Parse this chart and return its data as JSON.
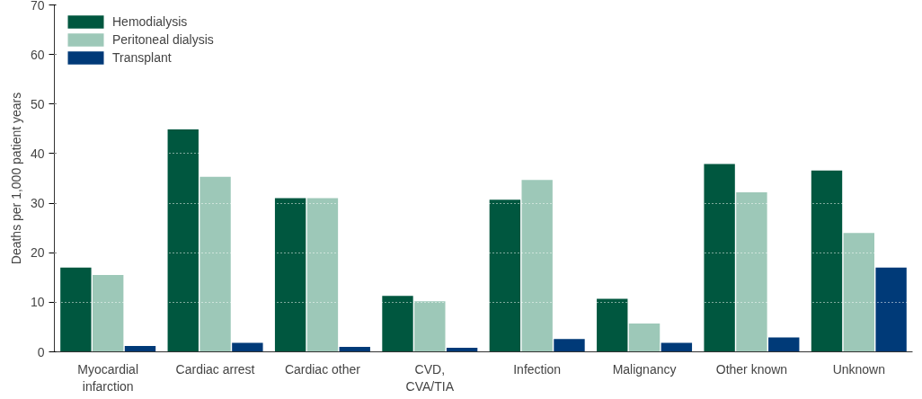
{
  "chart_data": {
    "type": "bar",
    "ylabel": "Deaths per 1,000 patient years",
    "categories": [
      "Myocardial\ninfarction",
      "Cardiac arrest",
      "Cardiac other",
      "CVD,\nCVA/TIA",
      "Infection",
      "Malignancy",
      "Other known",
      "Unknown"
    ],
    "series": [
      {
        "name": "Hemodialysis",
        "color": "#00573f",
        "values": [
          17.0,
          44.9,
          31.0,
          11.3,
          30.7,
          10.7,
          37.9,
          36.6
        ]
      },
      {
        "name": "Peritoneal dialysis",
        "color": "#9dc8b8",
        "values": [
          15.5,
          35.3,
          31.0,
          10.2,
          34.7,
          5.7,
          32.2,
          24.0
        ]
      },
      {
        "name": "Transplant",
        "color": "#003a78",
        "values": [
          1.2,
          1.8,
          1.0,
          0.8,
          2.6,
          1.8,
          2.9,
          17.0
        ]
      }
    ],
    "ylim": [
      0,
      70
    ],
    "yticks": [
      0,
      10,
      20,
      30,
      40,
      50,
      60,
      70
    ],
    "grid": "y",
    "legend": "top left"
  }
}
